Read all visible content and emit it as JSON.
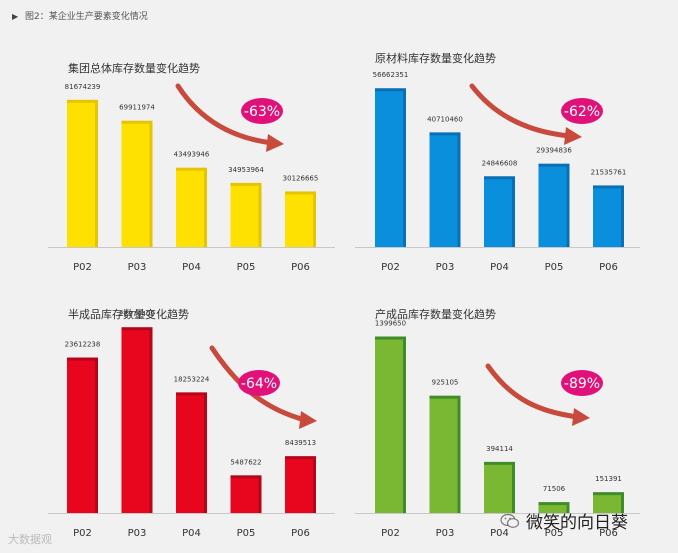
{
  "figure_caption": "图2：某企业生产要素变化情况",
  "watermark_left": "大数据观",
  "watermark_right": "微笑的向日葵",
  "chart_data": [
    {
      "type": "bar",
      "title": "集团总体库存数量变化趋势",
      "categories": [
        "P02",
        "P03",
        "P04",
        "P05",
        "P06"
      ],
      "values": [
        81674239,
        69911974,
        43493946,
        34953964,
        30126665
      ],
      "value_labels": [
        "81674239",
        "69911974",
        "43493946",
        "34953964",
        "30126665"
      ],
      "annotation": "-63%",
      "bar_color": "#ffe100",
      "bar_side_color": "#e6c400",
      "ylim": [
        0,
        90000000
      ]
    },
    {
      "type": "bar",
      "title": "原材料库存数量变化趋势",
      "categories": [
        "P02",
        "P03",
        "P04",
        "P05",
        "P06"
      ],
      "values": [
        56662351,
        40710460,
        24846608,
        29394836,
        21535761
      ],
      "value_labels": [
        "56662351",
        "40710460",
        "24846608",
        "29394836",
        "21535761"
      ],
      "annotation": "-62%",
      "bar_color": "#0a8fdc",
      "bar_side_color": "#0a6fb5",
      "ylim": [
        0,
        60000000
      ]
    },
    {
      "type": "bar",
      "title": "半成品库存数量变化趋势",
      "categories": [
        "P02",
        "P03",
        "P04",
        "P05",
        "P06"
      ],
      "values": [
        23612238,
        28276409,
        18253224,
        5487622,
        8439513
      ],
      "value_labels": [
        "23612238",
        "28276409",
        "18253224",
        "5487622",
        "8439513"
      ],
      "annotation": "-64%",
      "bar_color": "#e8061f",
      "bar_side_color": "#b4051a",
      "ylim": [
        0,
        30000000
      ]
    },
    {
      "type": "bar",
      "title": "产成品库存数量变化趋势",
      "categories": [
        "P02",
        "P03",
        "P04",
        "P05",
        "P06"
      ],
      "values": [
        1399650,
        925105,
        394114,
        71506,
        151391
      ],
      "value_labels": [
        "1399650",
        "925105",
        "394114",
        "71506",
        "151391"
      ],
      "annotation": "-89%",
      "bar_color": "#7ab833",
      "bar_side_color": "#3e8c2a",
      "ylim": [
        0,
        1500000
      ]
    }
  ],
  "colors": {
    "annotation_bg": "#e0127a",
    "arrow": "#c84a3c",
    "background": "#f1f1f1"
  }
}
